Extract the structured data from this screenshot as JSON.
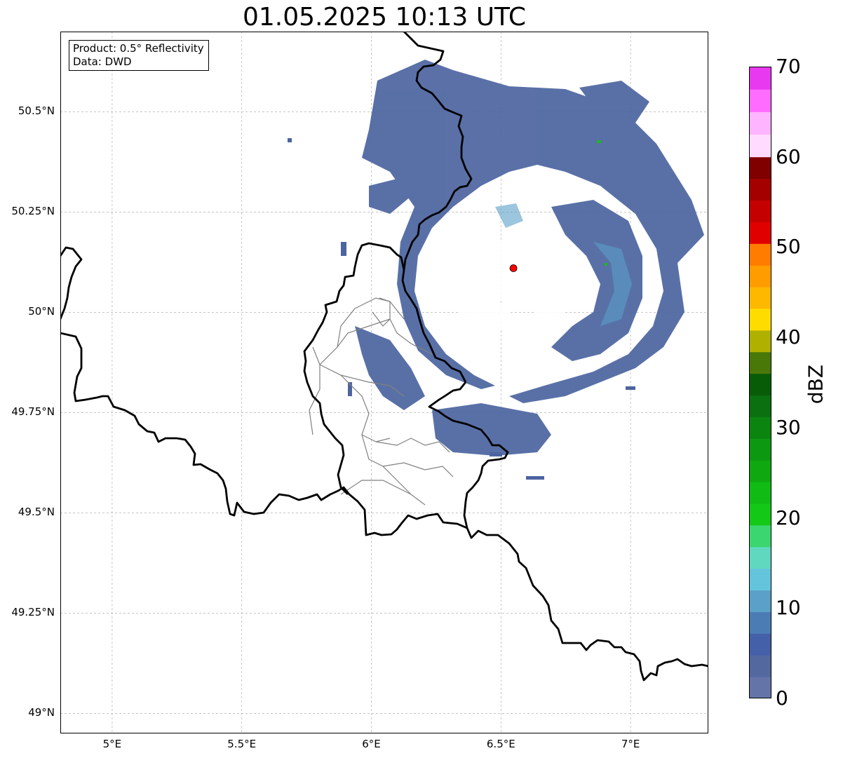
{
  "title": "01.05.2025 10:13 UTC",
  "info_box": {
    "product": "Product: 0.5° Reflectivity",
    "data": "Data: DWD"
  },
  "map": {
    "lon_range": [
      4.8,
      7.3
    ],
    "lat_range": [
      48.95,
      50.7
    ],
    "lat_ticks": [
      {
        "value": 50.5,
        "label": "50.5°N"
      },
      {
        "value": 50.25,
        "label": "50.25°N"
      },
      {
        "value": 50.0,
        "label": "50°N"
      },
      {
        "value": 49.75,
        "label": "49.75°N"
      },
      {
        "value": 49.5,
        "label": "49.5°N"
      },
      {
        "value": 49.25,
        "label": "49.25°N"
      },
      {
        "value": 49.0,
        "label": "49°N"
      }
    ],
    "lon_ticks": [
      {
        "value": 5.0,
        "label": "5°E"
      },
      {
        "value": 5.5,
        "label": "5.5°E"
      },
      {
        "value": 6.0,
        "label": "6°E"
      },
      {
        "value": 6.5,
        "label": "6.5°E"
      },
      {
        "value": 7.0,
        "label": "7°E"
      }
    ],
    "gridlines": true,
    "radar_site": {
      "lon": 6.548,
      "lat": 50.11,
      "color": "#ff0000"
    },
    "echo_color_main": "#4c64a0",
    "echo_color_light": "#5a9ec8",
    "border_color": "#000000",
    "admin_border_color": "#808080"
  },
  "colorbar": {
    "label": "dBZ",
    "min": 0,
    "max": 70,
    "ticks": [
      {
        "value": 0,
        "label": "0"
      },
      {
        "value": 10,
        "label": "10"
      },
      {
        "value": 20,
        "label": "20"
      },
      {
        "value": 30,
        "label": "30"
      },
      {
        "value": 40,
        "label": "40"
      },
      {
        "value": 50,
        "label": "50"
      },
      {
        "value": 60,
        "label": "60"
      },
      {
        "value": 70,
        "label": "70"
      }
    ],
    "colors": [
      "#6474a8",
      "#5468a0",
      "#4460a8",
      "#4c7cb4",
      "#5aa0c8",
      "#64c4dc",
      "#60d8c0",
      "#3cd670",
      "#14c818",
      "#10bc14",
      "#10a810",
      "#0c9810",
      "#0c8410",
      "#0a7010",
      "#085c08",
      "#4a7808",
      "#b0b000",
      "#ffdc00",
      "#ffb800",
      "#ff9c00",
      "#ff7c00",
      "#e00000",
      "#c40000",
      "#a40000",
      "#800000",
      "#ffdcff",
      "#ffb4ff",
      "#ff6cff",
      "#e838f0"
    ]
  }
}
